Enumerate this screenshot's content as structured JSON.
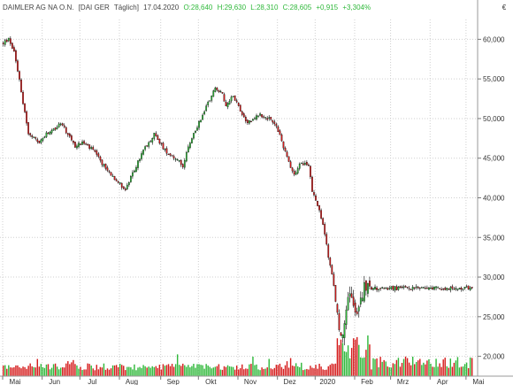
{
  "header": {
    "symbol": "DAIMLER AG NA O.N.",
    "exchange": "[DAI GER",
    "interval": "Täglich]",
    "date": "17.04.2020",
    "open": "O:28,640",
    "high": "H:29,630",
    "low": "L:28,310",
    "close": "C:28,605",
    "change": "+0,915",
    "change_pct": "+3,304%"
  },
  "currency_symbol": "€",
  "colors": {
    "up": "#2fb83a",
    "down": "#d51c1c",
    "wick": "#000000",
    "grid": "#cfcfcf",
    "header_gray": "#444444",
    "header_green": "#2fb83a"
  },
  "chart_data": {
    "type": "candlestick",
    "y_range": [
      17500,
      62500
    ],
    "y_ticks": [
      {
        "value": 20000,
        "label": "20,000"
      },
      {
        "value": 25000,
        "label": "25,000"
      },
      {
        "value": 30000,
        "label": "30,000"
      },
      {
        "value": 35000,
        "label": "35,000"
      },
      {
        "value": 40000,
        "label": "40,000"
      },
      {
        "value": 45000,
        "label": "45,000"
      },
      {
        "value": 50000,
        "label": "50,000"
      },
      {
        "value": 55000,
        "label": "55,000"
      },
      {
        "value": 60000,
        "label": "60,000"
      }
    ],
    "x_ticks": [
      "Mai",
      "Jun",
      "Jul",
      "Aug",
      "Sep",
      "Okt",
      "Nov",
      "Dez",
      "2020",
      "Feb",
      "Mrz",
      "Apr",
      "Mai"
    ],
    "month_start_index": [
      0,
      22,
      43,
      65,
      88,
      109,
      131,
      153,
      174,
      196,
      216,
      238,
      258
    ],
    "price_path": [
      [
        0,
        59.5
      ],
      [
        3,
        60.0
      ],
      [
        6,
        58.5
      ],
      [
        9,
        55.0
      ],
      [
        11,
        52.0
      ],
      [
        13,
        49.5
      ],
      [
        14,
        48.0
      ],
      [
        17,
        47.5
      ],
      [
        20,
        47.0
      ],
      [
        24,
        48.0
      ],
      [
        28,
        48.5
      ],
      [
        32,
        49.5
      ],
      [
        36,
        48.0
      ],
      [
        40,
        46.5
      ],
      [
        44,
        47.0
      ],
      [
        50,
        46.0
      ],
      [
        56,
        44.0
      ],
      [
        62,
        42.5
      ],
      [
        68,
        41.0
      ],
      [
        72,
        43.0
      ],
      [
        78,
        46.0
      ],
      [
        84,
        48.0
      ],
      [
        90,
        46.0
      ],
      [
        96,
        45.0
      ],
      [
        100,
        44.0
      ],
      [
        104,
        47.0
      ],
      [
        110,
        50.0
      ],
      [
        114,
        52.0
      ],
      [
        118,
        54.0
      ],
      [
        122,
        53.0
      ],
      [
        124,
        51.5
      ],
      [
        128,
        53.0
      ],
      [
        132,
        51.0
      ],
      [
        136,
        49.5
      ],
      [
        142,
        50.5
      ],
      [
        148,
        50.0
      ],
      [
        152,
        49.0
      ],
      [
        156,
        46.5
      ],
      [
        159,
        44.5
      ],
      [
        162,
        43.0
      ],
      [
        166,
        44.5
      ],
      [
        170,
        44.0
      ],
      [
        172,
        41.0
      ],
      [
        175,
        39.0
      ],
      [
        177,
        37.5
      ],
      [
        179,
        35.5
      ],
      [
        181,
        32.5
      ],
      [
        183,
        30.5
      ],
      [
        185,
        27.0
      ],
      [
        187,
        24.0
      ],
      [
        189,
        22.5
      ],
      [
        191,
        26.5
      ],
      [
        193,
        28.5
      ],
      [
        195,
        27.0
      ],
      [
        197,
        25.0
      ],
      [
        199,
        27.0
      ],
      [
        201,
        29.0
      ],
      [
        203,
        28.6
      ]
    ],
    "volume_max": 45000000
  }
}
